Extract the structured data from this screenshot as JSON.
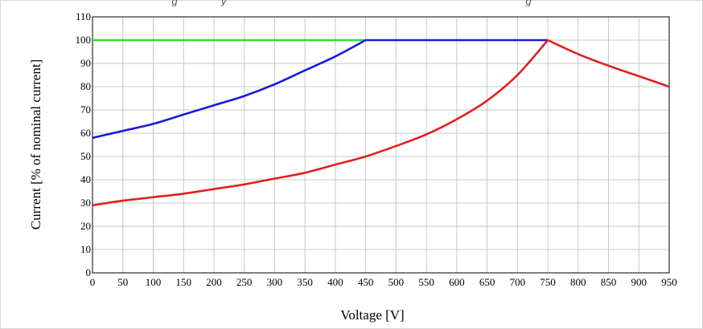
{
  "caption": "g               y                                                                                                       g",
  "chart_data": {
    "type": "line",
    "title": "",
    "xlabel": "Voltage [V]",
    "ylabel": "Current [% of nominal current]",
    "xlim": [
      0,
      950
    ],
    "ylim": [
      0,
      110
    ],
    "x_ticks": [
      0,
      50,
      100,
      150,
      200,
      250,
      300,
      350,
      400,
      450,
      500,
      550,
      600,
      650,
      700,
      750,
      800,
      850,
      900,
      950
    ],
    "y_ticks": [
      0,
      10,
      20,
      30,
      40,
      50,
      60,
      70,
      80,
      90,
      100,
      110
    ],
    "grid": true,
    "legend": "none",
    "series": [
      {
        "color": "#33dd33",
        "x": [
          0,
          450
        ],
        "y": [
          100,
          100
        ]
      },
      {
        "color": "#1a1adb",
        "x": [
          0,
          50,
          100,
          150,
          200,
          250,
          300,
          350,
          400,
          450,
          500,
          550,
          600,
          650,
          700,
          750
        ],
        "y": [
          58,
          61,
          64,
          68,
          72,
          76,
          81,
          87,
          93,
          100,
          100,
          100,
          100,
          100,
          100,
          100
        ]
      },
      {
        "color": "#e02020",
        "x": [
          0,
          50,
          100,
          150,
          200,
          250,
          300,
          350,
          400,
          450,
          500,
          550,
          600,
          650,
          700,
          750,
          800,
          850,
          900,
          950
        ],
        "y": [
          29,
          31,
          32.5,
          34,
          36,
          38,
          40.5,
          43,
          46.5,
          50,
          54.5,
          59.5,
          66,
          74,
          85,
          100,
          94,
          89,
          84.5,
          80
        ]
      }
    ]
  }
}
